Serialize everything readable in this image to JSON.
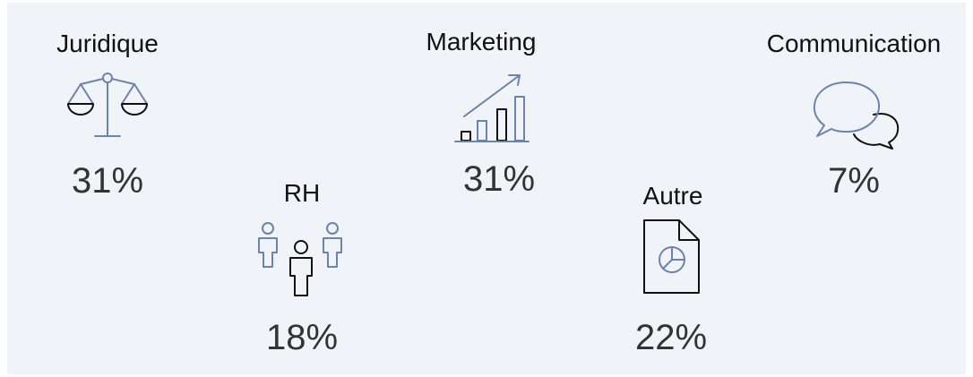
{
  "items": [
    {
      "label": "Juridique",
      "value": "31%"
    },
    {
      "label": "RH",
      "value": "18%"
    },
    {
      "label": "Marketing",
      "value": "31%"
    },
    {
      "label": "Autre",
      "value": "22%"
    },
    {
      "label": "Communication",
      "value": "7%"
    }
  ]
}
